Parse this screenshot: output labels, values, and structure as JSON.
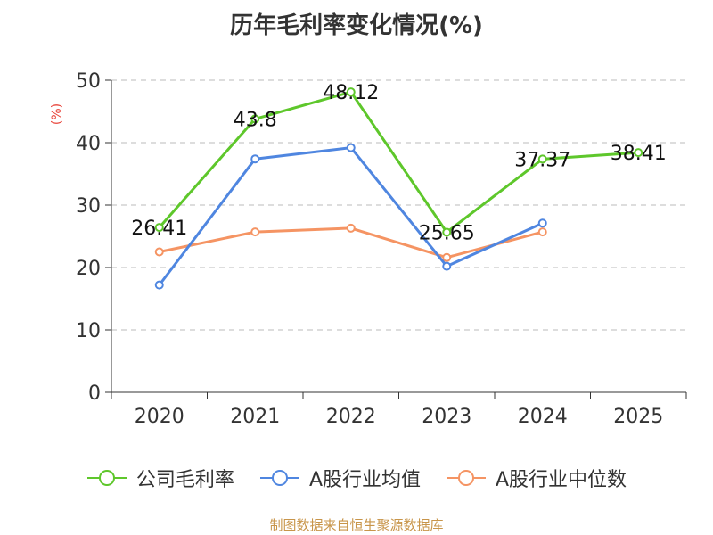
{
  "chart_data": {
    "type": "line",
    "title": "历年毛利率变化情况(%)",
    "ylabel": "(%)",
    "categories": [
      "2020",
      "2021",
      "2022",
      "2023",
      "2024",
      "2025"
    ],
    "ylim": [
      0,
      50
    ],
    "yticks": [
      0,
      10,
      20,
      30,
      40,
      50
    ],
    "grid": true,
    "series": [
      {
        "name": "公司毛利率",
        "color": "#5ec72b",
        "values": [
          26.41,
          43.8,
          48.12,
          25.65,
          37.37,
          38.41
        ],
        "labels": [
          "26.41",
          "43.8",
          "48.12",
          "25.65",
          "37.37",
          "38.41"
        ]
      },
      {
        "name": "A股行业均值",
        "color": "#4f86e0",
        "values": [
          17.2,
          37.4,
          39.2,
          20.2,
          27.1,
          null
        ]
      },
      {
        "name": "A股行业中位数",
        "color": "#f59463",
        "values": [
          22.5,
          25.7,
          26.3,
          21.6,
          25.7,
          null
        ]
      }
    ],
    "legend_position": "bottom"
  },
  "source_text": "制图数据来自恒生聚源数据库"
}
